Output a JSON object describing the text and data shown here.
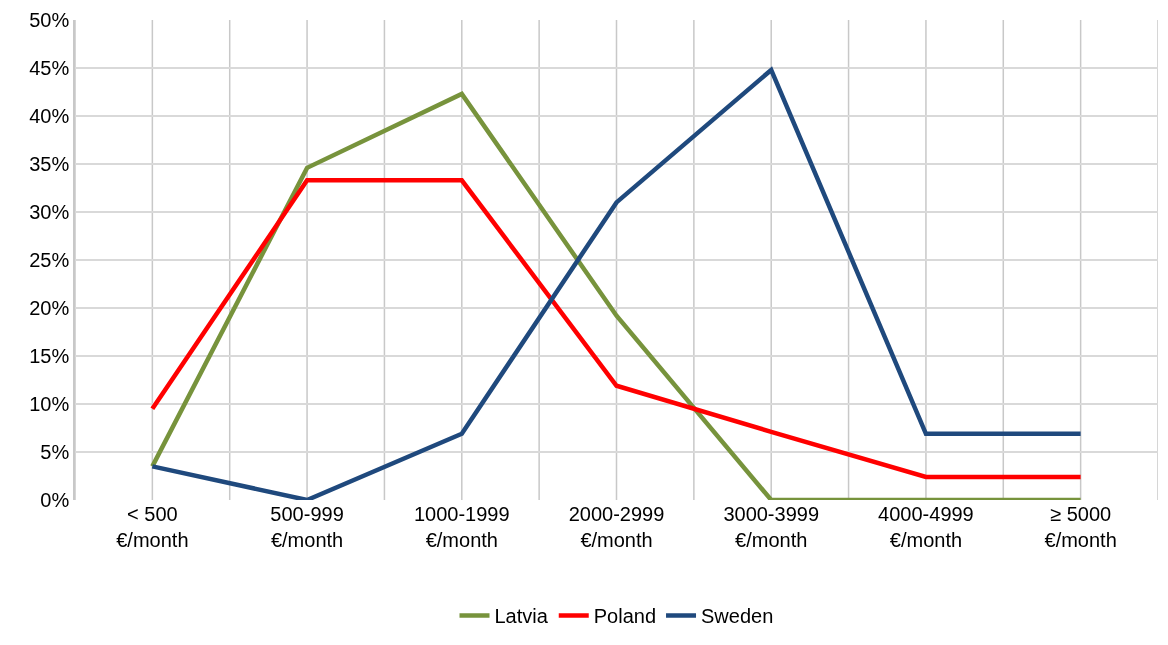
{
  "chart_data": {
    "type": "line",
    "categories": [
      "< 500\n€/month",
      "500-999\n€/month",
      "1000-1999\n€/month",
      "2000-2999\n€/month",
      "3000-3999\n€/month",
      "4000-4999\n€/month",
      "≥ 5000\n€/month"
    ],
    "series": [
      {
        "name": "Latvia",
        "color": "#77933c",
        "values": [
          3.5,
          34.6,
          42.3,
          19.2,
          0,
          0,
          0
        ]
      },
      {
        "name": "Poland",
        "color": "#ff0000",
        "values": [
          9.5,
          33.3,
          33.3,
          11.9,
          7.1,
          2.4,
          2.4
        ]
      },
      {
        "name": "Sweden",
        "color": "#1f497d",
        "values": [
          3.5,
          0,
          6.9,
          31.0,
          44.8,
          6.9,
          6.9
        ]
      }
    ],
    "ylim": [
      0,
      50
    ],
    "yticks": [
      {
        "value": 0,
        "label": "0%"
      },
      {
        "value": 5,
        "label": "5%"
      },
      {
        "value": 10,
        "label": "10%"
      },
      {
        "value": 15,
        "label": "15%"
      },
      {
        "value": 20,
        "label": "20%"
      },
      {
        "value": 25,
        "label": "25%"
      },
      {
        "value": 30,
        "label": "30%"
      },
      {
        "value": 35,
        "label": "35%"
      },
      {
        "value": 40,
        "label": "40%"
      },
      {
        "value": 45,
        "label": "45%"
      },
      {
        "value": 50,
        "label": "50%"
      }
    ],
    "grid": true,
    "legend": "bottom",
    "marker": "none",
    "line_style": "solid"
  }
}
